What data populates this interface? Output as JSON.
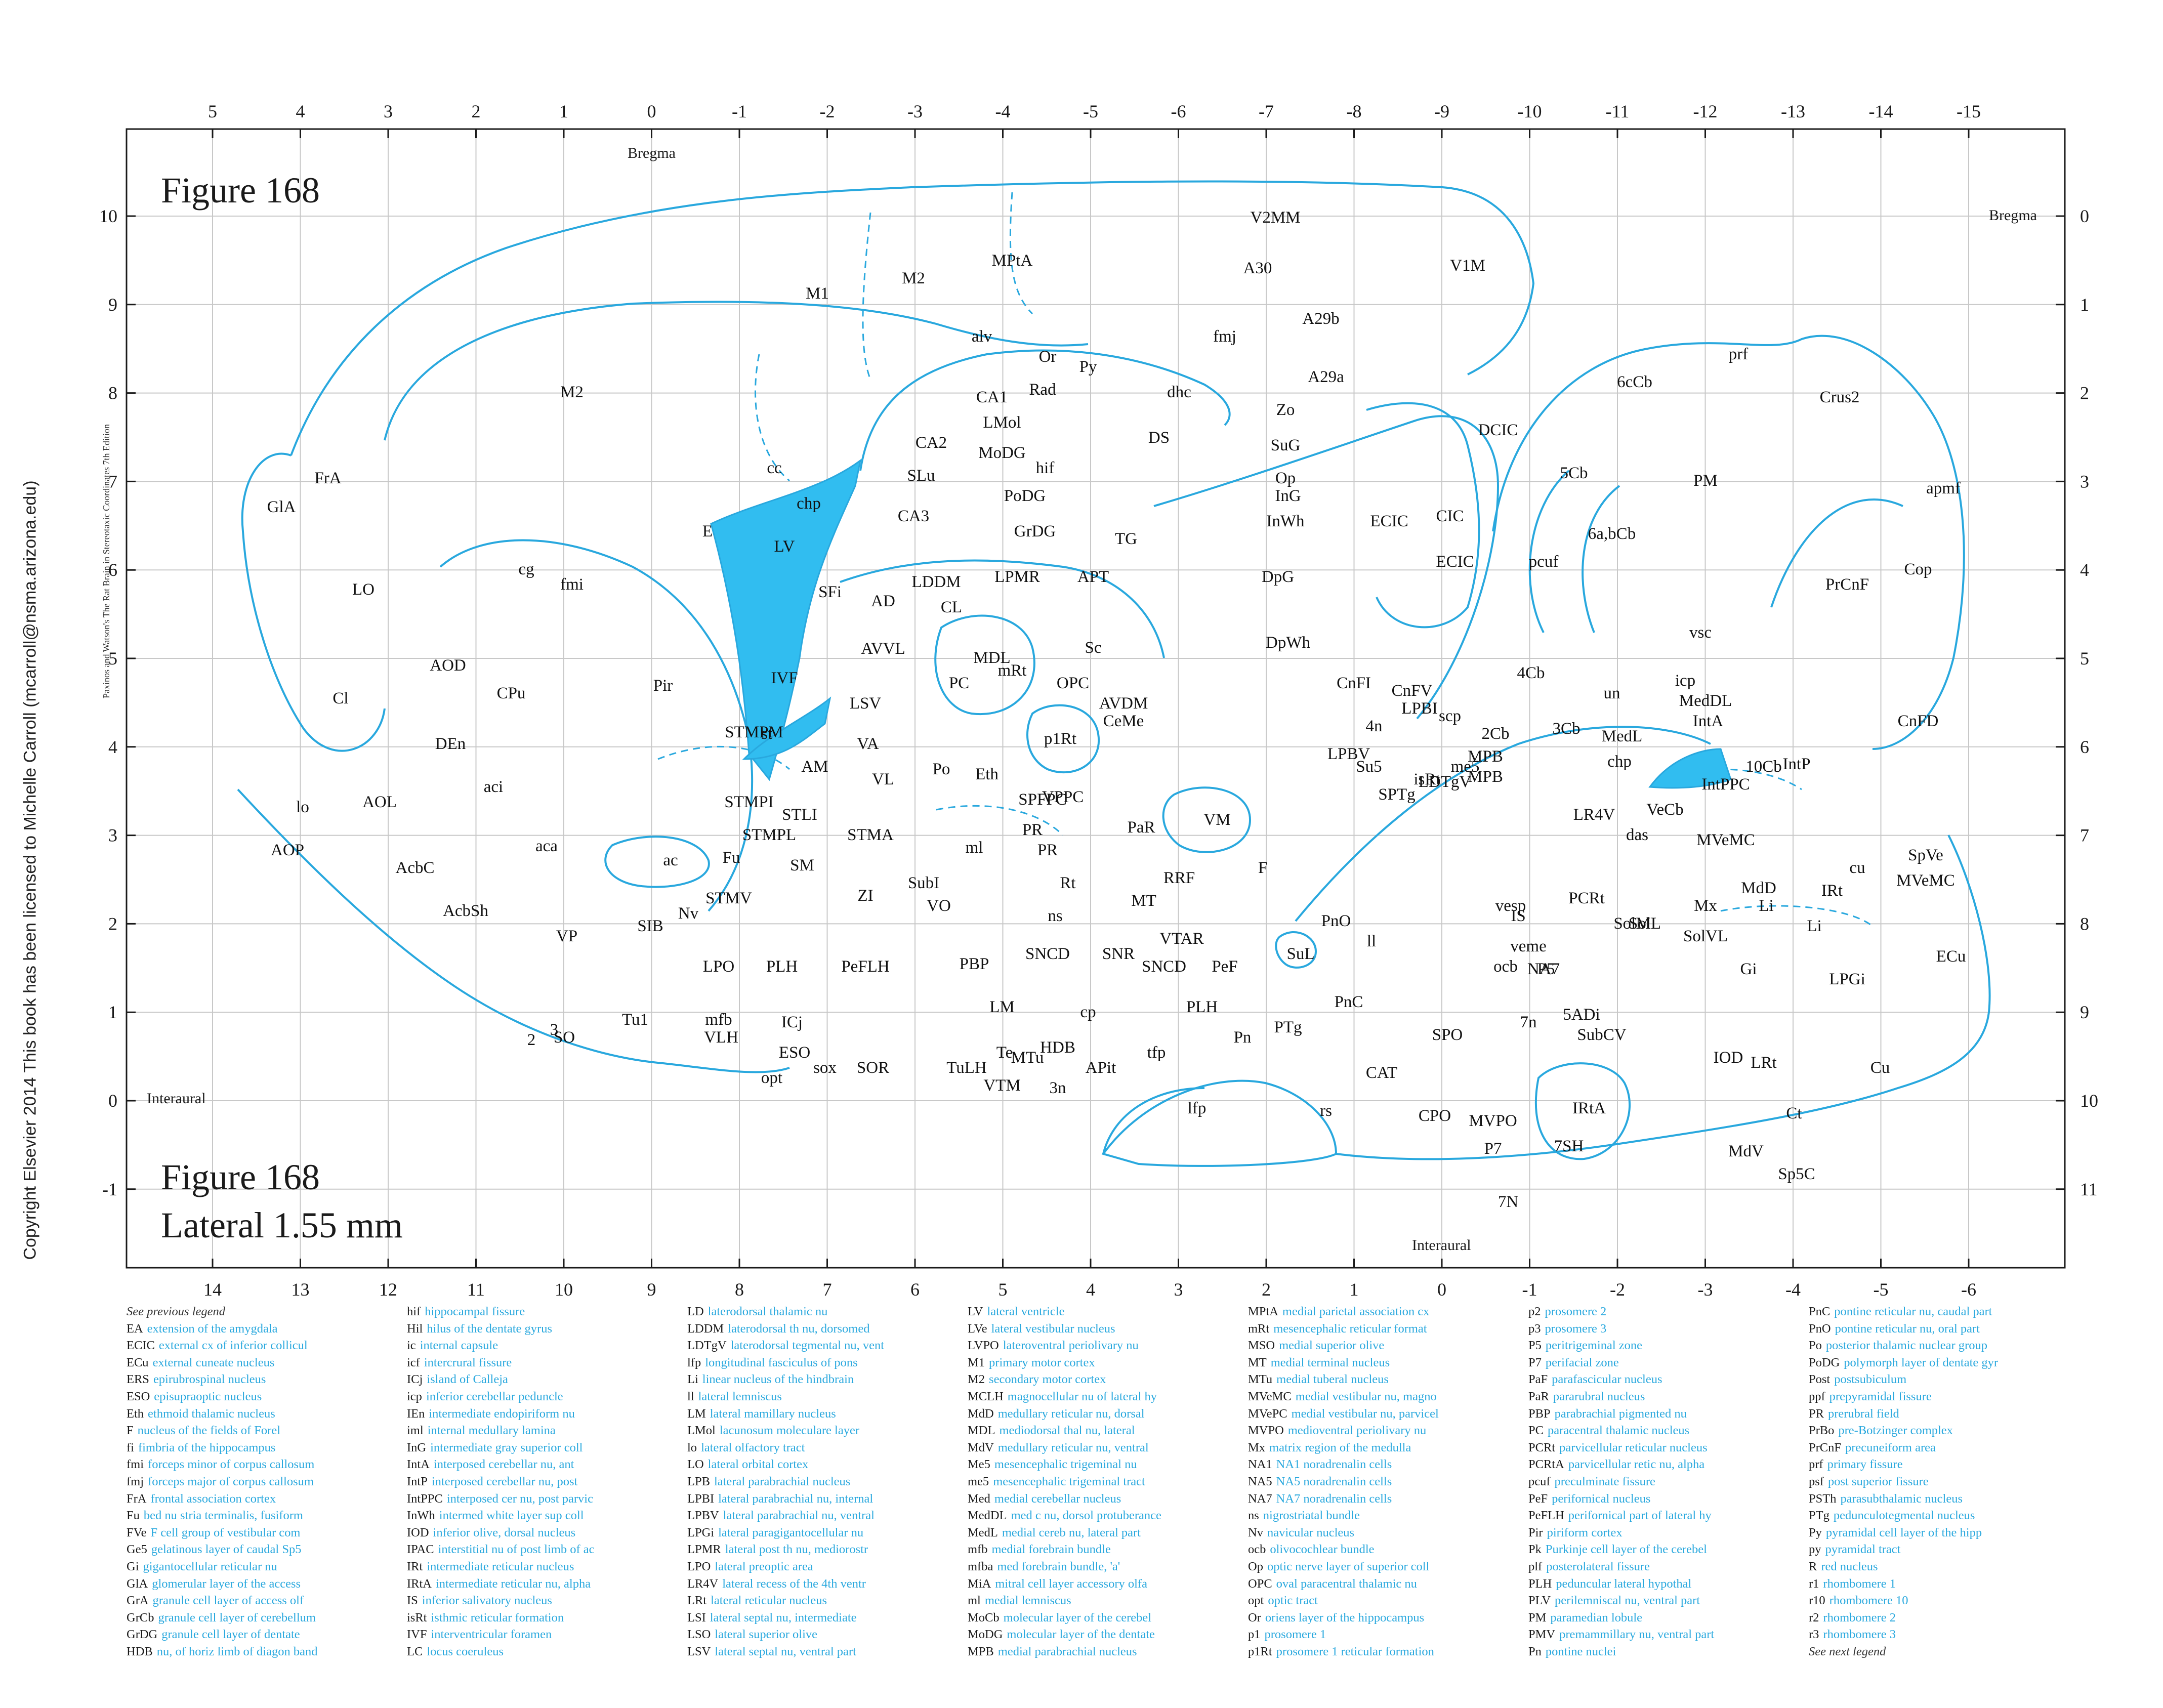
{
  "figure": {
    "title_top": "Figure 168",
    "title_bottom": "Figure 168",
    "lateral": "Lateral 1.55 mm",
    "bregma_top": "Bregma",
    "bregma_right": "Bregma",
    "interaural_left": "Interaural",
    "interaural_bottom": "Interaural",
    "edition_note": "Paxinos and Watson's The Rat Brain in Stereotaxic Coordinates   7th Edition",
    "copyright": "Copyright Elsevier 2014 This book has been licensed to Michelle Carroll (mcarroll@nsma.arizona.edu)"
  },
  "axes": {
    "top": [
      "5",
      "4",
      "3",
      "2",
      "1",
      "0",
      "-1",
      "-2",
      "-3",
      "-4",
      "-5",
      "-6",
      "-7",
      "-8",
      "-9",
      "-10",
      "-11",
      "-12",
      "-13",
      "-14",
      "-15"
    ],
    "bottom": [
      "14",
      "13",
      "12",
      "11",
      "10",
      "9",
      "8",
      "7",
      "6",
      "5",
      "4",
      "3",
      "2",
      "1",
      "0",
      "-1",
      "-2",
      "-3",
      "-4",
      "-5",
      "-6"
    ],
    "left": [
      "10",
      "9",
      "8",
      "7",
      "6",
      "5",
      "4",
      "3",
      "2",
      "1",
      "0",
      "-1"
    ],
    "right": [
      "0",
      "1",
      "2",
      "3",
      "4",
      "5",
      "6",
      "7",
      "8",
      "9",
      "10",
      "11"
    ]
  },
  "regions": [
    "M1",
    "M2",
    "MPtA",
    "V2MM",
    "V1M",
    "A30",
    "A29b",
    "A29a",
    "fmj",
    "alv",
    "Or",
    "Py",
    "Rad",
    "dhc",
    "CA1",
    "LMol",
    "CA2",
    "hif",
    "MoDG",
    "SLu",
    "PoDG",
    "CA3",
    "GrDG",
    "DS",
    "TG",
    "APT",
    "Zo",
    "SuG",
    "Op",
    "InG",
    "InWh",
    "DpG",
    "DpWh",
    "DCIC",
    "CIC",
    "ECIC",
    "ECIC",
    "M2",
    "FrA",
    "GlA",
    "LO",
    "cg",
    "fmi",
    "cc",
    "chp",
    "LV",
    "E",
    "SFi",
    "AD",
    "LDDM",
    "CL",
    "LPMR",
    "MDL",
    "PC",
    "Sc",
    "OPC",
    "p1Rt",
    "CeMe",
    "mRt",
    "AVDM",
    "AVVL",
    "LSV",
    "IVF",
    "st",
    "STMPM",
    "AM",
    "VA",
    "VL",
    "Po",
    "Eth",
    "VPPC",
    "SPFPC",
    "PR",
    "PR",
    "PaR",
    "VM",
    "ml",
    "RRF",
    "F",
    "Rt",
    "STMA",
    "STMPI",
    "STLI",
    "STMPL",
    "SM",
    "ZI",
    "SubI",
    "VO",
    "AOD",
    "Cl",
    "CPu",
    "Pir",
    "DEn",
    "aci",
    "AOL",
    "lo",
    "AOP",
    "AcbC",
    "aca",
    "ac",
    "Fu",
    "STMV",
    "Nv",
    "AcbSh",
    "VP",
    "SIB",
    "LPO",
    "PLH",
    "PeFLH",
    "PBP",
    "MT",
    "VTAR",
    "ns",
    "SNCD",
    "SNR",
    "SNCD",
    "PeF",
    "LM",
    "cp",
    "PLH",
    "HDB",
    "mfb",
    "VLH",
    "ICj",
    "Tu1",
    "2",
    "3",
    "SO",
    "ESO",
    "opt",
    "sox",
    "SOR",
    "TuLH",
    "MTu",
    "Te",
    "VTM",
    "3n",
    "APit",
    "tfp",
    "lfp",
    "Pn",
    "PTg",
    "rs",
    "PnO",
    "SuL",
    "ll",
    "PnC",
    "CAT",
    "SPO",
    "CPO",
    "MVPO",
    "P7",
    "7N",
    "7SH",
    "IRtA",
    "SubCV",
    "5ADi",
    "7n",
    "ocb",
    "NA7",
    "P5",
    "veme",
    "vesp",
    "IS",
    "PCRt",
    "SolM",
    "SolL",
    "SolVL",
    "Mx",
    "MdD",
    "Li",
    "IRt",
    "Li",
    "Gi",
    "LPGi",
    "LRt",
    "IOD",
    "Ct",
    "MdV",
    "Sp5C",
    "Cu",
    "ECu",
    "cu",
    "SpVe",
    "MVeMC",
    "MVeMC",
    "das",
    "VeCb",
    "LR4V",
    "chp",
    "10Cb",
    "IntPPC",
    "IntP",
    "MedL",
    "IntA",
    "MedDL",
    "icp",
    "vsc",
    "un",
    "2Cb",
    "3Cb",
    "4Cb",
    "pcuf",
    "5Cb",
    "6a,bCb",
    "6cCb",
    "prf",
    "Crus2",
    "PM",
    "apmf",
    "Cop",
    "PrCnF",
    "CnFD",
    "CnFI",
    "CnFV",
    "4n",
    "LPBV",
    "LPBI",
    "scp",
    "me5",
    "MPB",
    "MPB",
    "LDTgV",
    "isRt",
    "SPTg",
    "Su5"
  ],
  "legend": [
    {
      "note_top": "See previous legend",
      "items": [
        [
          "EA",
          "extension of the amygdala"
        ],
        [
          "ECIC",
          "external cx of inferior collicul"
        ],
        [
          "ECu",
          "external cuneate nucleus"
        ],
        [
          "ERS",
          "epirubrospinal nucleus"
        ],
        [
          "ESO",
          "episupraoptic nucleus"
        ],
        [
          "Eth",
          "ethmoid thalamic nucleus"
        ],
        [
          "F",
          "nucleus of the fields of Forel"
        ],
        [
          "fi",
          "fimbria of the hippocampus"
        ],
        [
          "fmi",
          "forceps minor of corpus callosum"
        ],
        [
          "fmj",
          "forceps major of corpus callosum"
        ],
        [
          "FrA",
          "frontal association cortex"
        ],
        [
          "Fu",
          "bed nu stria terminalis, fusiform"
        ],
        [
          "FVe",
          "F cell group of vestibular com"
        ],
        [
          "Ge5",
          "gelatinous layer of caudal Sp5"
        ],
        [
          "Gi",
          "gigantocellular reticular nu"
        ],
        [
          "GlA",
          "glomerular layer of the access"
        ],
        [
          "GrA",
          "granule cell layer of access olf"
        ],
        [
          "GrCb",
          "granule cell layer of cerebellum"
        ],
        [
          "GrDG",
          "granule cell layer of dentate"
        ],
        [
          "HDB",
          "nu, of horiz limb of diagon band"
        ]
      ]
    },
    {
      "items": [
        [
          "hif",
          "hippocampal fissure"
        ],
        [
          "Hil",
          "hilus of the dentate gyrus"
        ],
        [
          "ic",
          "internal capsule"
        ],
        [
          "icf",
          "intercrural fissure"
        ],
        [
          "ICj",
          "island of Calleja"
        ],
        [
          "icp",
          "inferior cerebellar peduncle"
        ],
        [
          "IEn",
          "intermediate endopiriform nu"
        ],
        [
          "iml",
          "internal medullary lamina"
        ],
        [
          "InG",
          "intermediate gray superior coll"
        ],
        [
          "IntA",
          "interposed cerebellar nu, ant"
        ],
        [
          "IntP",
          "interposed cerebellar nu, post"
        ],
        [
          "IntPPC",
          "interposed cer nu, post parvic"
        ],
        [
          "InWh",
          "intermed white layer sup coll"
        ],
        [
          "IOD",
          "inferior olive, dorsal nucleus"
        ],
        [
          "IPAC",
          "interstitial nu of post limb of ac"
        ],
        [
          "IRt",
          "intermediate reticular nucleus"
        ],
        [
          "IRtA",
          "intermediate reticular nu, alpha"
        ],
        [
          "IS",
          "inferior salivatory nucleus"
        ],
        [
          "isRt",
          "isthmic reticular formation"
        ],
        [
          "IVF",
          "interventricular foramen"
        ],
        [
          "LC",
          "locus coeruleus"
        ]
      ]
    },
    {
      "items": [
        [
          "LD",
          "laterodorsal thalamic nu"
        ],
        [
          "LDDM",
          "laterodorsal th nu, dorsomed"
        ],
        [
          "LDTgV",
          "laterodorsal tegmental nu, vent"
        ],
        [
          "lfp",
          "longitudinal fasciculus of pons"
        ],
        [
          "Li",
          "linear nucleus of the hindbrain"
        ],
        [
          "ll",
          "lateral lemniscus"
        ],
        [
          "LM",
          "lateral mamillary nucleus"
        ],
        [
          "LMol",
          "lacunosum moleculare layer"
        ],
        [
          "lo",
          "lateral olfactory tract"
        ],
        [
          "LO",
          "lateral orbital cortex"
        ],
        [
          "LPB",
          "lateral parabrachial nucleus"
        ],
        [
          "LPBI",
          "lateral parabrachial nu, internal"
        ],
        [
          "LPBV",
          "lateral parabrachial nu, ventral"
        ],
        [
          "LPGi",
          "lateral paragigantocellular nu"
        ],
        [
          "LPMR",
          "lateral post th nu, mediorostr"
        ],
        [
          "LPO",
          "lateral preoptic area"
        ],
        [
          "LR4V",
          "lateral recess of the 4th ventr"
        ],
        [
          "LRt",
          "lateral reticular nucleus"
        ],
        [
          "LSI",
          "lateral septal nu, intermediate"
        ],
        [
          "LSO",
          "lateral superior olive"
        ],
        [
          "LSV",
          "lateral septal nu, ventral part"
        ]
      ]
    },
    {
      "items": [
        [
          "LV",
          "lateral ventricle"
        ],
        [
          "LVe",
          "lateral vestibular nucleus"
        ],
        [
          "LVPO",
          "lateroventral periolivary nu"
        ],
        [
          "M1",
          "primary motor cortex"
        ],
        [
          "M2",
          "secondary motor cortex"
        ],
        [
          "MCLH",
          "magnocellular nu of lateral hy"
        ],
        [
          "MdD",
          "medullary reticular nu, dorsal"
        ],
        [
          "MDL",
          "mediodorsal thal nu, lateral"
        ],
        [
          "MdV",
          "medullary reticular nu, ventral"
        ],
        [
          "Me5",
          "mesencephalic trigeminal nu"
        ],
        [
          "me5",
          "mesencephalic trigeminal tract"
        ],
        [
          "Med",
          "medial cerebellar nucleus"
        ],
        [
          "MedDL",
          "med c nu, dorsol protuberance"
        ],
        [
          "MedL",
          "medial cereb nu, lateral part"
        ],
        [
          "mfb",
          "medial forebrain bundle"
        ],
        [
          "mfba",
          "med forebrain bundle, 'a'"
        ],
        [
          "MiA",
          "mitral cell layer accessory olfa"
        ],
        [
          "ml",
          "medial lemniscus"
        ],
        [
          "MoCb",
          "molecular layer of the cerebel"
        ],
        [
          "MoDG",
          "molecular layer of the dentate"
        ],
        [
          "MPB",
          "medial parabrachial nucleus"
        ]
      ]
    },
    {
      "items": [
        [
          "MPtA",
          "medial parietal association cx"
        ],
        [
          "mRt",
          "mesencephalic reticular format"
        ],
        [
          "MSO",
          "medial superior olive"
        ],
        [
          "MT",
          "medial terminal nucleus"
        ],
        [
          "MTu",
          "medial tuberal nucleus"
        ],
        [
          "MVeMC",
          "medial vestibular nu, magno"
        ],
        [
          "MVePC",
          "medial vestibular nu, parvicel"
        ],
        [
          "MVPO",
          "medioventral periolivary nu"
        ],
        [
          "Mx",
          "matrix region of the medulla"
        ],
        [
          "NA1",
          "NA1 noradrenalin cells"
        ],
        [
          "NA5",
          "NA5 noradrenalin cells"
        ],
        [
          "NA7",
          "NA7 noradrenalin cells"
        ],
        [
          "ns",
          "nigrostriatal bundle"
        ],
        [
          "Nv",
          "navicular nucleus"
        ],
        [
          "ocb",
          "olivocochlear bundle"
        ],
        [
          "Op",
          "optic nerve layer of superior coll"
        ],
        [
          "OPC",
          "oval paracentral thalamic nu"
        ],
        [
          "opt",
          "optic tract"
        ],
        [
          "Or",
          "oriens layer of the hippocampus"
        ],
        [
          "p1",
          "prosomere 1"
        ],
        [
          "p1Rt",
          "prosomere 1 reticular formation"
        ]
      ]
    },
    {
      "items": [
        [
          "p2",
          "prosomere 2"
        ],
        [
          "p3",
          "prosomere 3"
        ],
        [
          "P5",
          "peritrigeminal zone"
        ],
        [
          "P7",
          "perifacial zone"
        ],
        [
          "PaF",
          "parafascicular nucleus"
        ],
        [
          "PaR",
          "pararubral nucleus"
        ],
        [
          "PBP",
          "parabrachial pigmented nu"
        ],
        [
          "PC",
          "paracentral thalamic nucleus"
        ],
        [
          "PCRt",
          "parvicellular reticular nucleus"
        ],
        [
          "PCRtA",
          "parvicellular retic nu, alpha"
        ],
        [
          "pcuf",
          "preculminate fissure"
        ],
        [
          "PeF",
          "perifornical nucleus"
        ],
        [
          "PeFLH",
          "perifornical part of lateral hy"
        ],
        [
          "Pir",
          "piriform cortex"
        ],
        [
          "Pk",
          "Purkinje cell layer of the cerebel"
        ],
        [
          "plf",
          "posterolateral fissure"
        ],
        [
          "PLH",
          "peduncular lateral hypothal"
        ],
        [
          "PLV",
          "perilemniscal nu, ventral part"
        ],
        [
          "PM",
          "paramedian lobule"
        ],
        [
          "PMV",
          "premammillary nu, ventral part"
        ],
        [
          "Pn",
          "pontine nuclei"
        ]
      ]
    },
    {
      "note_bottom": "See next legend",
      "items": [
        [
          "PnC",
          "pontine reticular nu, caudal part"
        ],
        [
          "PnO",
          "pontine reticular nu, oral part"
        ],
        [
          "Po",
          "posterior thalamic nuclear group"
        ],
        [
          "PoDG",
          "polymorph layer of dentate gyr"
        ],
        [
          "Post",
          "postsubiculum"
        ],
        [
          "ppf",
          "prepyramidal fissure"
        ],
        [
          "PR",
          "prerubral field"
        ],
        [
          "PrBo",
          "pre-Botzinger complex"
        ],
        [
          "PrCnF",
          "precuneiform area"
        ],
        [
          "prf",
          "primary fissure"
        ],
        [
          "psf",
          "post superior fissure"
        ],
        [
          "PSTh",
          "parasubthalamic nucleus"
        ],
        [
          "PTg",
          "pedunculotegmental nucleus"
        ],
        [
          "Py",
          "pyramidal cell layer of the hipp"
        ],
        [
          "py",
          "pyramidal tract"
        ],
        [
          "R",
          "red nucleus"
        ],
        [
          "r1",
          "rhombomere 1"
        ],
        [
          "r10",
          "rhombomere 10"
        ],
        [
          "r2",
          "rhombomere 2"
        ],
        [
          "r3",
          "rhombomere 3"
        ]
      ]
    }
  ],
  "colors": {
    "outline": "#29a8de",
    "fill": "#31bdf0",
    "grid": "#c8c8c8",
    "frame": "#1a1a1a",
    "legend_def": "#29a8de"
  }
}
